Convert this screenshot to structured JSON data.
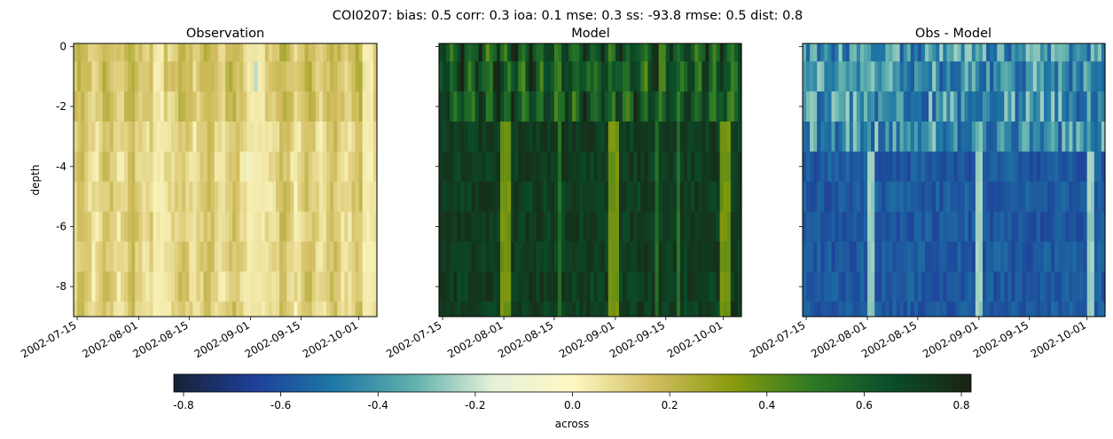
{
  "figure": {
    "suptitle": "COI0207: bias: 0.5  corr: 0.3  ioa: 0.1  mse: 0.3  ss: -93.8  rmse: 0.5  dist: 0.8",
    "colorbar_label": "across"
  },
  "chart_data": [
    {
      "type": "heatmap",
      "title": "Observation",
      "xlabel": "",
      "ylabel": "depth",
      "x_range": [
        "2002-07-14",
        "2002-10-06"
      ],
      "x_ticks": [
        "2002-07-15",
        "2002-08-01",
        "2002-08-15",
        "2002-09-01",
        "2002-09-15",
        "2002-10-01"
      ],
      "ylim": [
        -9,
        0.1
      ],
      "y_ticks": [
        0,
        -2,
        -4,
        -6,
        -8
      ],
      "depth_levels": [
        0,
        -1,
        -2,
        -3,
        -4,
        -5,
        -6,
        -7,
        -8,
        -9
      ],
      "value_range_estimate": [
        -0.25,
        0.2
      ],
      "colormap": "delta"
    },
    {
      "type": "heatmap",
      "title": "Model",
      "xlabel": "",
      "ylabel": "",
      "x_range": [
        "2002-07-14",
        "2002-10-06"
      ],
      "x_ticks": [
        "2002-07-15",
        "2002-08-01",
        "2002-08-15",
        "2002-09-01",
        "2002-09-15",
        "2002-10-01"
      ],
      "ylim": [
        -9,
        0.1
      ],
      "y_ticks": [
        0,
        -2,
        -4,
        -6,
        -8
      ],
      "depth_levels": [
        0,
        -1,
        -2,
        -3,
        -4,
        -5,
        -6,
        -7,
        -8,
        -9
      ],
      "value_range_estimate": [
        0.3,
        0.8
      ],
      "colormap": "delta"
    },
    {
      "type": "heatmap",
      "title": "Obs - Model",
      "xlabel": "",
      "ylabel": "",
      "x_range": [
        "2002-07-14",
        "2002-10-06"
      ],
      "x_ticks": [
        "2002-07-15",
        "2002-08-01",
        "2002-08-15",
        "2002-09-01",
        "2002-09-15",
        "2002-10-01"
      ],
      "ylim": [
        -9,
        0.1
      ],
      "y_ticks": [
        0,
        -2,
        -4,
        -6,
        -8
      ],
      "depth_levels": [
        0,
        -1,
        -2,
        -3,
        -4,
        -5,
        -6,
        -7,
        -8,
        -9
      ],
      "value_range_estimate": [
        -0.8,
        -0.2
      ],
      "colormap": "delta"
    }
  ],
  "colorbar": {
    "range": [
      -0.82,
      0.82
    ],
    "ticks": [
      "-0.8",
      "-0.6",
      "-0.4",
      "-0.2",
      "0.0",
      "0.2",
      "0.4",
      "0.6",
      "0.8"
    ],
    "stops": [
      "#172135",
      "#1e3f99",
      "#1e77a5",
      "#5fb0ac",
      "#e4f1d9",
      "#fef9c4",
      "#d2be61",
      "#899b0c",
      "#2e7a25",
      "#0a4d2a",
      "#1b2313"
    ]
  }
}
